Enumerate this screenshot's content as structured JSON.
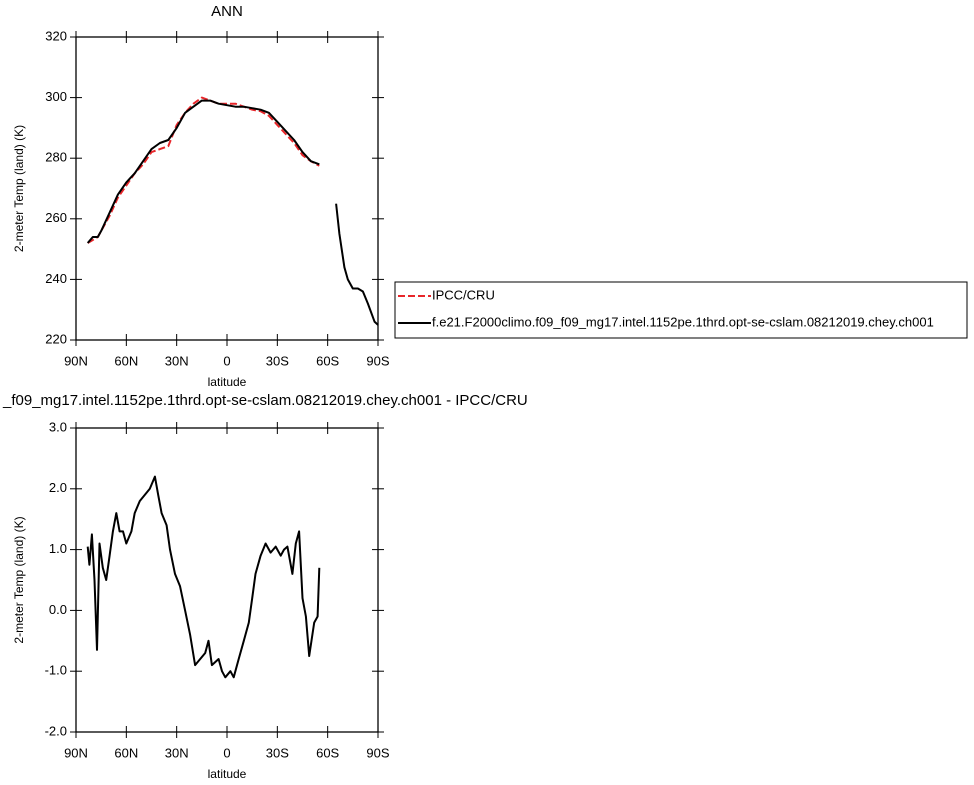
{
  "chart_data": [
    {
      "type": "line",
      "title": "ANN",
      "ylabel": "2-meter Temp (land) (K)",
      "xlabel": "latitude",
      "xlim": [
        90,
        -90
      ],
      "xticks": [
        {
          "value": 90,
          "label": "90N"
        },
        {
          "value": 60,
          "label": "60N"
        },
        {
          "value": 30,
          "label": "30N"
        },
        0,
        {
          "value": -30,
          "label": "30S"
        },
        {
          "value": -60,
          "label": "60S"
        },
        {
          "value": -90,
          "label": "90S"
        }
      ],
      "ylim": [
        220,
        320
      ],
      "yticks": [
        220,
        240,
        260,
        280,
        300,
        320
      ],
      "legend": "right",
      "x": [
        83,
        80,
        77,
        75,
        70,
        65,
        60,
        55,
        50,
        45,
        40,
        35,
        30,
        25,
        20,
        15,
        10,
        5,
        0,
        -5,
        -10,
        -15,
        -20,
        -25,
        -30,
        -35,
        -40,
        -45,
        -50,
        -55,
        -60,
        -65,
        -67,
        -70,
        -72,
        -75,
        -78,
        -81,
        -84,
        -88,
        -90
      ],
      "series": [
        {
          "name": "IPCC/CRU",
          "color": "#e8262a",
          "dashed": true,
          "values": [
            252,
            253,
            254,
            256,
            261,
            267,
            271,
            275,
            278,
            282,
            283,
            284,
            291,
            295,
            298,
            300,
            299,
            298,
            298,
            298,
            297,
            296,
            295.5,
            294,
            291,
            288,
            285,
            281,
            279,
            277.5,
            null,
            null,
            null,
            null,
            null,
            null,
            null,
            null,
            null,
            null,
            null
          ]
        },
        {
          "name": "f.e21.F2000climo.f09_f09_mg17.intel.1152pe.1thrd.opt-se-cslam.08212019.chey.ch001",
          "color": "#000000",
          "dashed": false,
          "values": [
            252,
            254,
            254,
            256,
            262,
            268,
            272,
            275,
            279,
            283,
            285,
            286,
            290,
            295,
            297,
            299,
            299,
            298,
            297.5,
            297,
            297,
            296.5,
            296,
            295,
            292,
            289,
            286,
            282,
            279,
            278,
            null,
            265,
            255,
            244,
            240,
            237,
            237,
            236,
            232,
            226,
            225
          ]
        }
      ]
    },
    {
      "type": "line",
      "title": "_f09_mg17.intel.1152pe.1thrd.opt-se-cslam.08212019.chey.ch001 - IPCC/CRU",
      "ylabel": "2-meter Temp (land) (K)",
      "xlabel": "latitude",
      "xlim": [
        90,
        -90
      ],
      "xticks": [
        {
          "value": 90,
          "label": "90N"
        },
        {
          "value": 60,
          "label": "60N"
        },
        {
          "value": 30,
          "label": "30N"
        },
        0,
        {
          "value": -30,
          "label": "30S"
        },
        {
          "value": -60,
          "label": "60S"
        },
        {
          "value": -90,
          "label": "90S"
        }
      ],
      "ylim": [
        -2,
        3
      ],
      "yticks": [
        {
          "value": -2,
          "label": "-2.0"
        },
        {
          "value": -1,
          "label": "-1.0"
        },
        {
          "value": 0,
          "label": "0.0"
        },
        {
          "value": 1,
          "label": "1.0"
        },
        {
          "value": 2,
          "label": "2.0"
        },
        {
          "value": 3,
          "label": "3.0"
        }
      ],
      "x": [
        83,
        82,
        80.5,
        79,
        77.5,
        76,
        74,
        72,
        70,
        68,
        66,
        64,
        62,
        60,
        57,
        55,
        52,
        49,
        46,
        43,
        41,
        39,
        36,
        34,
        31,
        28,
        25,
        22,
        19,
        16,
        13,
        11,
        9,
        5,
        3,
        1,
        -2,
        -4,
        -7,
        -10,
        -13,
        -15,
        -17,
        -20,
        -23,
        -26,
        -29,
        -32,
        -34,
        -36,
        -39,
        -41,
        -43,
        -45,
        -47,
        -49,
        -52,
        -54,
        -55
      ],
      "color": "#000000",
      "values": [
        1.05,
        0.75,
        1.25,
        0.5,
        -0.65,
        1.1,
        0.7,
        0.5,
        0.9,
        1.3,
        1.6,
        1.3,
        1.3,
        1.1,
        1.3,
        1.6,
        1.8,
        1.9,
        2.0,
        2.2,
        1.9,
        1.6,
        1.4,
        1.0,
        0.6,
        0.4,
        0.0,
        -0.4,
        -0.9,
        -0.8,
        -0.7,
        -0.5,
        -0.9,
        -0.8,
        -1.0,
        -1.1,
        -1.0,
        -1.1,
        -0.8,
        -0.5,
        -0.2,
        0.2,
        0.6,
        0.9,
        1.1,
        0.95,
        1.05,
        0.9,
        1.0,
        1.05,
        0.6,
        1.1,
        1.3,
        0.2,
        -0.1,
        -0.75,
        -0.2,
        -0.1,
        0.7
      ]
    }
  ]
}
